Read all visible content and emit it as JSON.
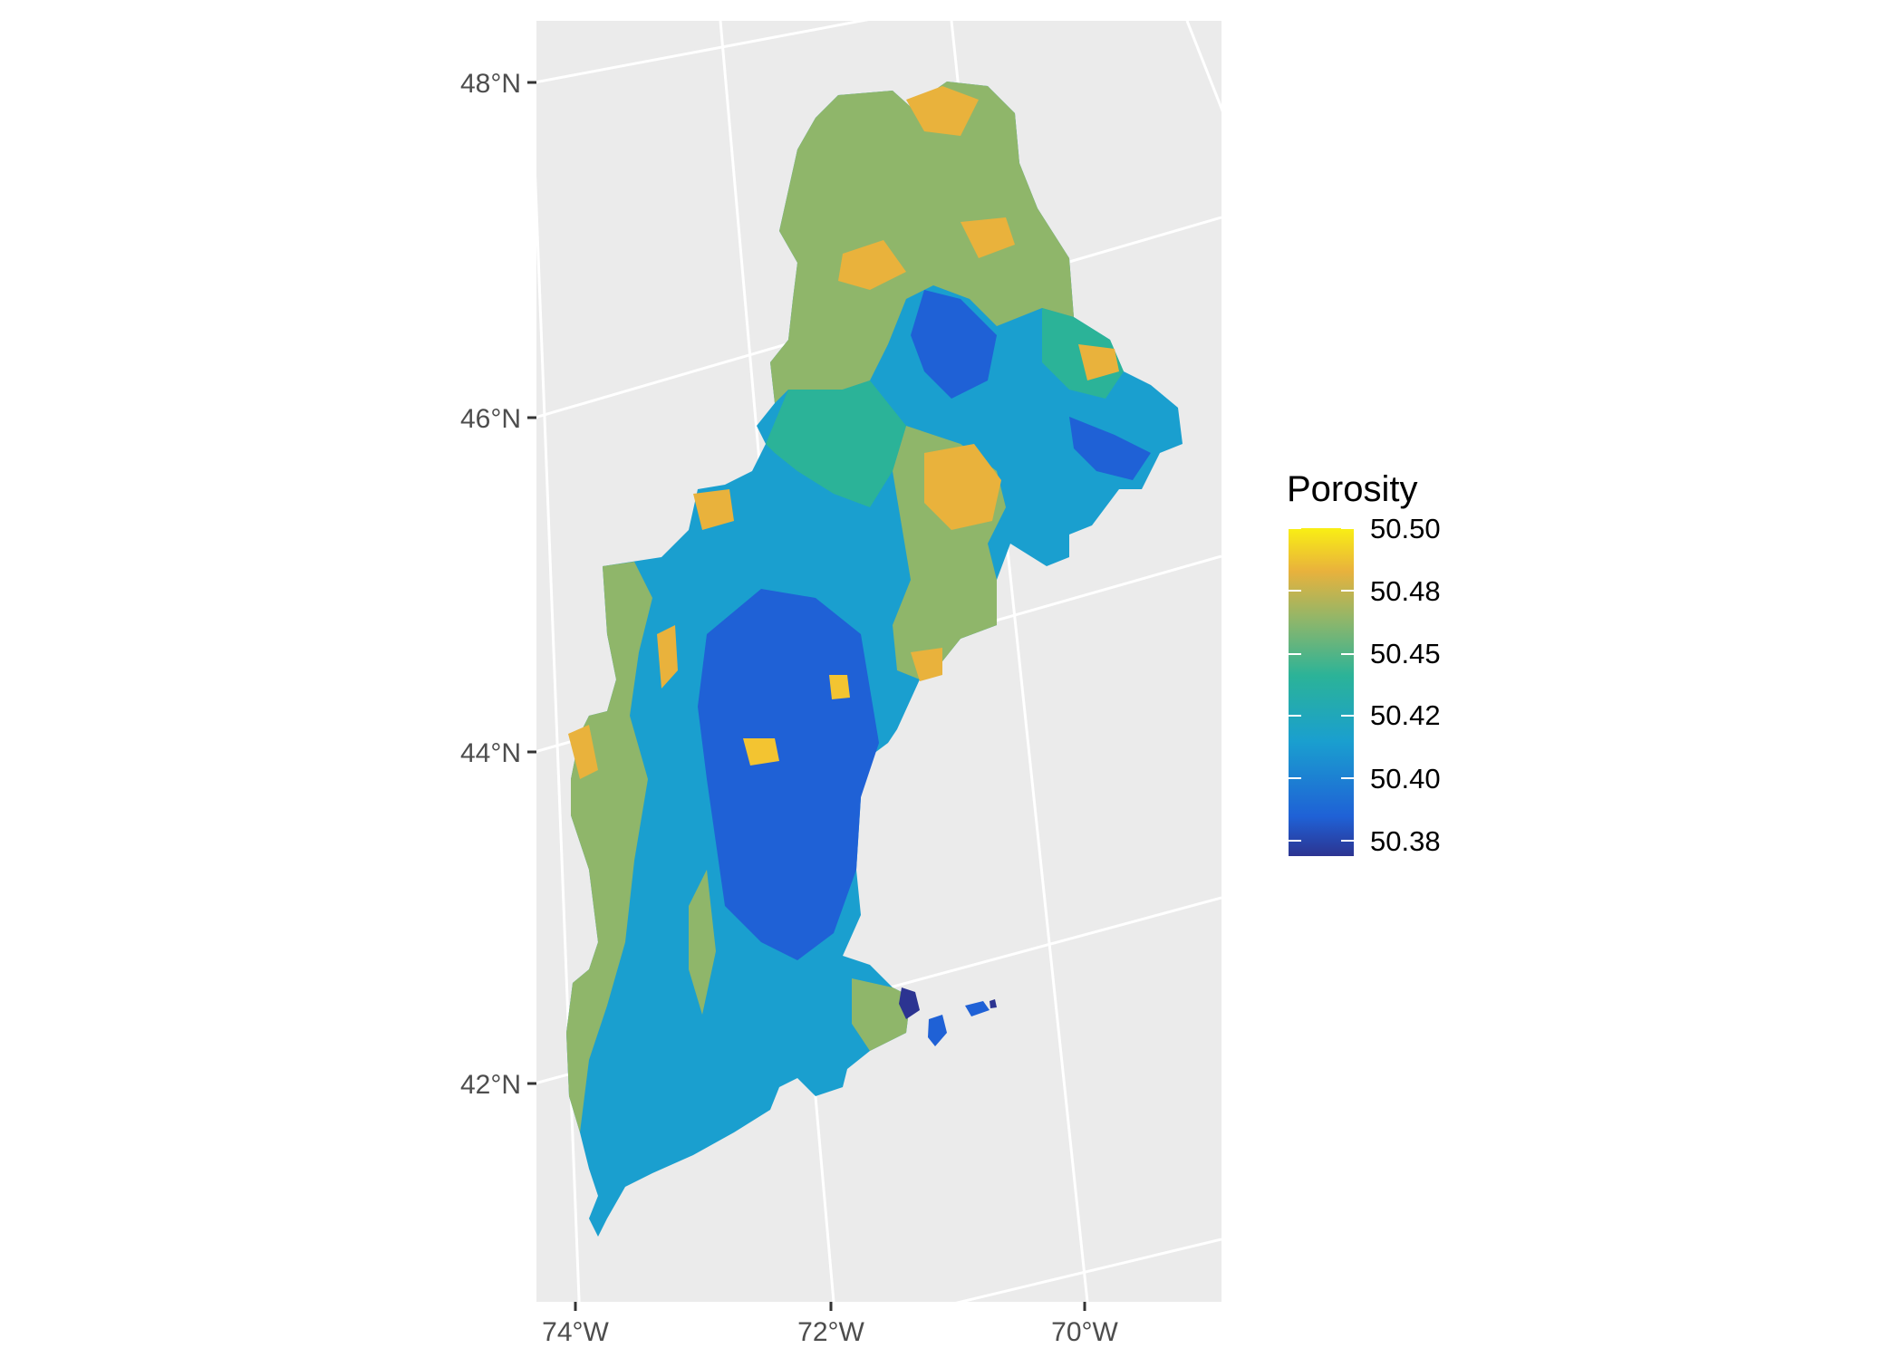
{
  "map": {
    "axes": {
      "y_ticks": [
        "48°N",
        "46°N",
        "44°N",
        "42°N"
      ],
      "x_ticks": [
        "74°W",
        "72°W",
        "70°W"
      ]
    },
    "legend": {
      "title": "Porosity",
      "labels": [
        "50.50",
        "50.48",
        "50.45",
        "50.42",
        "50.40",
        "50.38"
      ]
    },
    "colors": {
      "panel_background": "#ebebeb",
      "graticule": "#ffffff",
      "dark_blue": "#2c3491",
      "blue": "#1f61d6",
      "cyan_blue": "#1a9fcf",
      "teal": "#2bb398",
      "green_olive": "#8fb66a",
      "gold": "#e9b23c",
      "yellow": "#f9ef14"
    }
  },
  "chart_data": {
    "type": "heatmap",
    "title": "",
    "xlabel": "",
    "ylabel": "",
    "x_ticks": [
      "74°W",
      "72°W",
      "70°W"
    ],
    "y_ticks": [
      "48°N",
      "46°N",
      "44°N",
      "42°N"
    ],
    "colorbar": {
      "title": "Porosity",
      "min": 50.37,
      "max": 50.5,
      "ticks": [
        50.5,
        50.48,
        50.45,
        50.42,
        50.4,
        50.38
      ],
      "tick_labels": [
        "50.50",
        "50.48",
        "50.45",
        "50.42",
        "50.40",
        "50.38"
      ]
    }
  }
}
